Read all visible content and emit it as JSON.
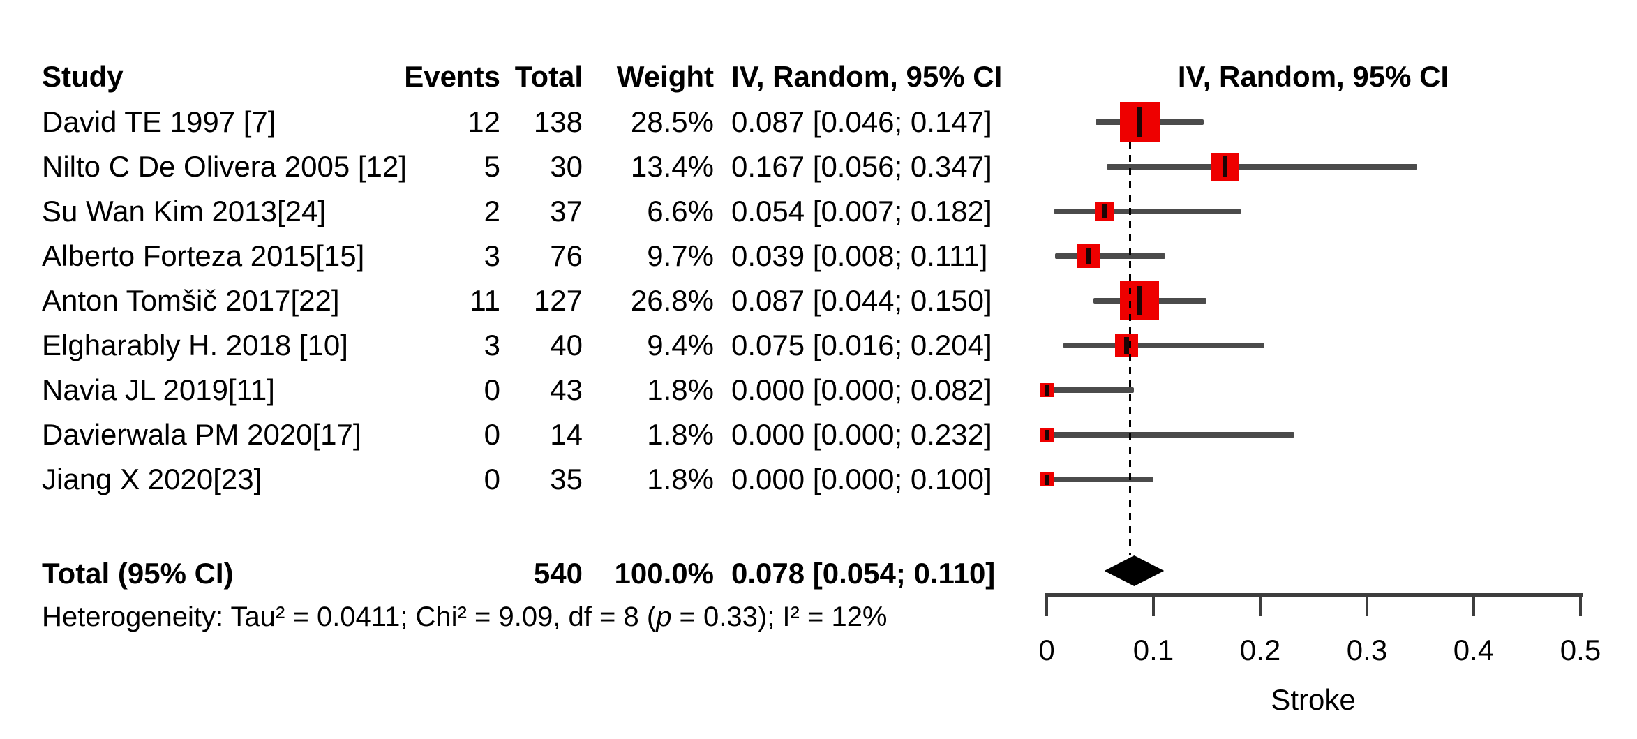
{
  "header": {
    "study": "Study",
    "events": "Events",
    "total": "Total",
    "weight": "Weight",
    "effect": "IV, Random, 95% CI",
    "plot_effect": "IV, Random, 95% CI"
  },
  "colors": {
    "square": "#EE0000",
    "ci_line": "#4B4B4B",
    "diamond": "#000000",
    "dashed_reference_line": "#000000",
    "axis": "#3D3D3D",
    "text": "#000000"
  },
  "chart_data": {
    "type": "forest",
    "effect_measure_label": "IV, Random, 95% CI",
    "xlabel": "Stroke",
    "xlim": [
      0,
      0.5
    ],
    "xticks": [
      0,
      0.1,
      0.2,
      0.3,
      0.4,
      0.5
    ],
    "xtick_labels": [
      "0",
      "0.1",
      "0.2",
      "0.3",
      "0.4",
      "0.5"
    ],
    "grid": false,
    "studies": [
      {
        "label": "David TE 1997 [7]",
        "events": 12,
        "total": 138,
        "weight_pct": "28.5%",
        "weight": 28.5,
        "effect_text": "0.087 [0.046; 0.147]",
        "est": 0.087,
        "lo": 0.046,
        "hi": 0.147
      },
      {
        "label": "Nilto C De Olivera 2005 [12]",
        "events": 5,
        "total": 30,
        "weight_pct": "13.4%",
        "weight": 13.4,
        "effect_text": "0.167 [0.056; 0.347]",
        "est": 0.167,
        "lo": 0.056,
        "hi": 0.347
      },
      {
        "label": "Su Wan Kim 2013[24]",
        "events": 2,
        "total": 37,
        "weight_pct": "6.6%",
        "weight": 6.6,
        "effect_text": "0.054 [0.007; 0.182]",
        "est": 0.054,
        "lo": 0.007,
        "hi": 0.182
      },
      {
        "label": "Alberto Forteza 2015[15]",
        "events": 3,
        "total": 76,
        "weight_pct": "9.7%",
        "weight": 9.7,
        "effect_text": "0.039 [0.008; 0.111]",
        "est": 0.039,
        "lo": 0.008,
        "hi": 0.111
      },
      {
        "label": "Anton Tomšič 2017[22]",
        "events": 11,
        "total": 127,
        "weight_pct": "26.8%",
        "weight": 26.8,
        "effect_text": "0.087 [0.044; 0.150]",
        "est": 0.087,
        "lo": 0.044,
        "hi": 0.15
      },
      {
        "label": "Elgharably H. 2018 [10]",
        "events": 3,
        "total": 40,
        "weight_pct": "9.4%",
        "weight": 9.4,
        "effect_text": "0.075 [0.016; 0.204]",
        "est": 0.075,
        "lo": 0.016,
        "hi": 0.204
      },
      {
        "label": "Navia JL 2019[11]",
        "events": 0,
        "total": 43,
        "weight_pct": "1.8%",
        "weight": 1.8,
        "effect_text": "0.000 [0.000; 0.082]",
        "est": 0.0,
        "lo": 0.0,
        "hi": 0.082
      },
      {
        "label": "Davierwala PM 2020[17]",
        "events": 0,
        "total": 14,
        "weight_pct": "1.8%",
        "weight": 1.8,
        "effect_text": "0.000 [0.000; 0.232]",
        "est": 0.0,
        "lo": 0.0,
        "hi": 0.232
      },
      {
        "label": "Jiang X 2020[23]",
        "events": 0,
        "total": 35,
        "weight_pct": "1.8%",
        "weight": 1.8,
        "effect_text": "0.000 [0.000; 0.100]",
        "est": 0.0,
        "lo": 0.0,
        "hi": 0.1
      }
    ],
    "pooled": {
      "label": "Total (95% CI)",
      "total": "540",
      "weight_pct": "100.0%",
      "effect_text": "0.078 [0.054; 0.110]",
      "est": 0.078,
      "lo": 0.054,
      "hi": 0.11
    },
    "heterogeneity": {
      "pre": "Heterogeneity: Tau² = 0.0411; Chi² = 9.09, df = 8 (",
      "p": "p",
      "post": " = 0.33); I² = 12%"
    }
  }
}
